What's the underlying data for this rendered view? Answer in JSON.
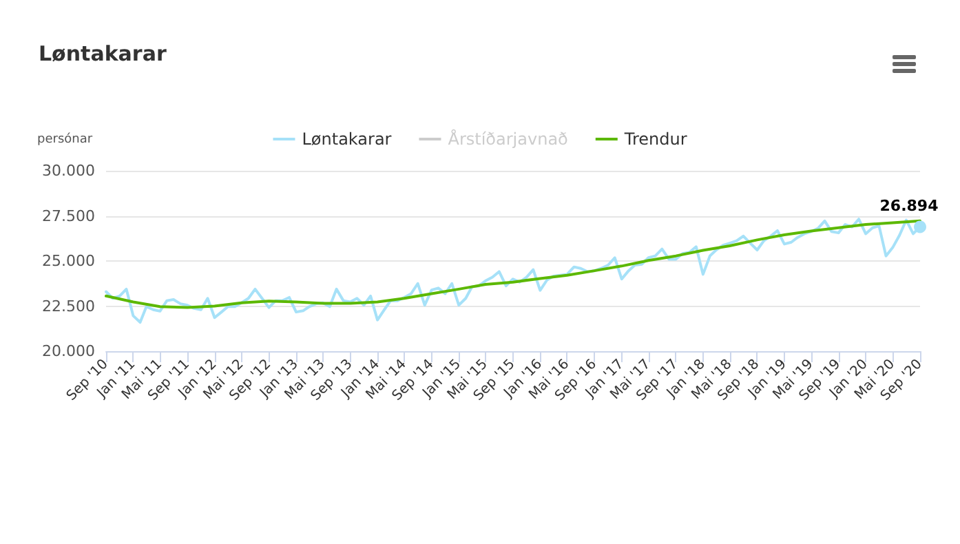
{
  "chart_data": {
    "type": "line",
    "title": "Løntakarar",
    "ylabel": "persónar",
    "x": [
      "2010-09",
      "2010-10",
      "2010-11",
      "2010-12",
      "2011-01",
      "2011-02",
      "2011-03",
      "2011-04",
      "2011-05",
      "2011-06",
      "2011-07",
      "2011-08",
      "2011-09",
      "2011-10",
      "2011-11",
      "2011-12",
      "2012-01",
      "2012-02",
      "2012-03",
      "2012-04",
      "2012-05",
      "2012-06",
      "2012-07",
      "2012-08",
      "2012-09",
      "2012-10",
      "2012-11",
      "2012-12",
      "2013-01",
      "2013-02",
      "2013-03",
      "2013-04",
      "2013-05",
      "2013-06",
      "2013-07",
      "2013-08",
      "2013-09",
      "2013-10",
      "2013-11",
      "2013-12",
      "2014-01",
      "2014-02",
      "2014-03",
      "2014-04",
      "2014-05",
      "2014-06",
      "2014-07",
      "2014-08",
      "2014-09",
      "2014-10",
      "2014-11",
      "2014-12",
      "2015-01",
      "2015-02",
      "2015-03",
      "2015-04",
      "2015-05",
      "2015-06",
      "2015-07",
      "2015-08",
      "2015-09",
      "2015-10",
      "2015-11",
      "2015-12",
      "2016-01",
      "2016-02",
      "2016-03",
      "2016-04",
      "2016-05",
      "2016-06",
      "2016-07",
      "2016-08",
      "2016-09",
      "2016-10",
      "2016-11",
      "2016-12",
      "2017-01",
      "2017-02",
      "2017-03",
      "2017-04",
      "2017-05",
      "2017-06",
      "2017-07",
      "2017-08",
      "2017-09",
      "2017-10",
      "2017-11",
      "2017-12",
      "2018-01",
      "2018-02",
      "2018-03",
      "2018-04",
      "2018-05",
      "2018-06",
      "2018-07",
      "2018-08",
      "2018-09",
      "2018-10",
      "2018-11",
      "2018-12",
      "2019-01",
      "2019-02",
      "2019-03",
      "2019-04",
      "2019-05",
      "2019-06",
      "2019-07",
      "2019-08",
      "2019-09",
      "2019-10",
      "2019-11",
      "2019-12",
      "2020-01",
      "2020-02",
      "2020-03",
      "2020-04",
      "2020-05",
      "2020-06",
      "2020-07",
      "2020-08",
      "2020-09"
    ],
    "series": [
      {
        "name": "Løntakarar",
        "color": "#a6e1f8",
        "values": [
          23300,
          22930,
          23060,
          23440,
          21960,
          21600,
          22470,
          22300,
          22220,
          22800,
          22860,
          22630,
          22550,
          22370,
          22300,
          22930,
          21860,
          22170,
          22470,
          22470,
          22680,
          22930,
          23440,
          22930,
          22420,
          22800,
          22800,
          22980,
          22170,
          22240,
          22470,
          22630,
          22680,
          22470,
          23440,
          22800,
          22730,
          22930,
          22550,
          23060,
          21730,
          22300,
          22800,
          22800,
          22980,
          23190,
          23750,
          22550,
          23390,
          23500,
          23190,
          23750,
          22550,
          22930,
          23570,
          23620,
          23900,
          24100,
          24410,
          23620,
          24000,
          23830,
          24100,
          24520,
          23370,
          23950,
          24160,
          24210,
          24260,
          24670,
          24590,
          24410,
          24460,
          24590,
          24770,
          25180,
          24000,
          24460,
          24770,
          24820,
          25180,
          25280,
          25660,
          25100,
          25100,
          25410,
          25480,
          25790,
          24260,
          25280,
          25610,
          25870,
          25990,
          26120,
          26380,
          25990,
          25610,
          26120,
          26380,
          26680,
          25940,
          26040,
          26300,
          26510,
          26630,
          26810,
          27220,
          26630,
          26560,
          27020,
          26890,
          27320,
          26510,
          26840,
          26940,
          25280,
          25740,
          26430,
          27270,
          26510,
          26894
        ],
        "value_labels": [
          null,
          null,
          null,
          null,
          null,
          null,
          null,
          null,
          null,
          null,
          null,
          null,
          null,
          null,
          null,
          null,
          null,
          null,
          null,
          null,
          null,
          null,
          null,
          null,
          null,
          null,
          null,
          null,
          null,
          null,
          null,
          null,
          null,
          null,
          null,
          null,
          null,
          null,
          null,
          null,
          null,
          null,
          null,
          null,
          null,
          null,
          null,
          null,
          null,
          null,
          null,
          null,
          null,
          null,
          null,
          null,
          null,
          null,
          null,
          null,
          null,
          null,
          null,
          null,
          null,
          null,
          null,
          null,
          null,
          null,
          null,
          null,
          null,
          null,
          null,
          null,
          null,
          null,
          null,
          null,
          null,
          null,
          null,
          null,
          null,
          null,
          null,
          null,
          null,
          null,
          null,
          null,
          null,
          null,
          null,
          null,
          null,
          null,
          null,
          null,
          null,
          null,
          null,
          null,
          null,
          null,
          null,
          null,
          null,
          null,
          null,
          null,
          null,
          null,
          null,
          null,
          null,
          null,
          null,
          null,
          "26.894"
        ]
      },
      {
        "name": "Årstíðarjavnað",
        "color": "#cccccc",
        "values": [
          null,
          null,
          null,
          null,
          null,
          null,
          null,
          null,
          null,
          null,
          null,
          null,
          null,
          null,
          null,
          null,
          null,
          null,
          null,
          null,
          null,
          null,
          null,
          null,
          null,
          null,
          null,
          null,
          null,
          null,
          null,
          null,
          null,
          null,
          null,
          null,
          null,
          null,
          null,
          null,
          null,
          null,
          null,
          null,
          null,
          null,
          null,
          null,
          null,
          null,
          null,
          null,
          null,
          null,
          null,
          null,
          null,
          null,
          null,
          null,
          null,
          null,
          null,
          null,
          null,
          null,
          null,
          null,
          null,
          null,
          null,
          null,
          null,
          null,
          null,
          null,
          null,
          null,
          null,
          null,
          null,
          null,
          null,
          null,
          null,
          null,
          null,
          null,
          null,
          null,
          null,
          null,
          null,
          null,
          null,
          null,
          null,
          null,
          null,
          null,
          null,
          null,
          null,
          null,
          null,
          null,
          null,
          null,
          null,
          null,
          null,
          null,
          null,
          null,
          null,
          null,
          null,
          null,
          null,
          null,
          null
        ]
      },
      {
        "name": "Trendur",
        "color": "#5cb800",
        "x": [
          "2010-09",
          "2011-01",
          "2011-05",
          "2011-09",
          "2012-01",
          "2012-05",
          "2012-09",
          "2013-01",
          "2013-05",
          "2013-09",
          "2014-01",
          "2014-05",
          "2014-09",
          "2015-01",
          "2015-05",
          "2015-09",
          "2016-01",
          "2016-05",
          "2016-09",
          "2017-01",
          "2017-05",
          "2017-09",
          "2018-01",
          "2018-05",
          "2018-09",
          "2019-01",
          "2019-05",
          "2019-09",
          "2020-01",
          "2020-05",
          "2020-09"
        ],
        "values": [
          23060,
          22730,
          22470,
          22420,
          22500,
          22680,
          22780,
          22730,
          22650,
          22650,
          22730,
          22930,
          23190,
          23440,
          23700,
          23830,
          24030,
          24210,
          24460,
          24720,
          25030,
          25280,
          25590,
          25840,
          26170,
          26450,
          26660,
          26840,
          27020,
          27120,
          27220
        ]
      }
    ],
    "xlim": [
      "2010-09",
      "2020-09"
    ],
    "xticks": [
      {
        "value": "2010-09",
        "label": "Sep '10"
      },
      {
        "value": "2011-01",
        "label": "Jan '11"
      },
      {
        "value": "2011-05",
        "label": "Mai '11"
      },
      {
        "value": "2011-09",
        "label": "Sep '11"
      },
      {
        "value": "2012-01",
        "label": "Jan '12"
      },
      {
        "value": "2012-05",
        "label": "Mai '12"
      },
      {
        "value": "2012-09",
        "label": "Sep '12"
      },
      {
        "value": "2013-01",
        "label": "Jan '13"
      },
      {
        "value": "2013-05",
        "label": "Mai '13"
      },
      {
        "value": "2013-09",
        "label": "Sep '13"
      },
      {
        "value": "2014-01",
        "label": "Jan '14"
      },
      {
        "value": "2014-05",
        "label": "Mai '14"
      },
      {
        "value": "2014-09",
        "label": "Sep '14"
      },
      {
        "value": "2015-01",
        "label": "Jan '15"
      },
      {
        "value": "2015-05",
        "label": "Mai '15"
      },
      {
        "value": "2015-09",
        "label": "Sep '15"
      },
      {
        "value": "2016-01",
        "label": "Jan '16"
      },
      {
        "value": "2016-05",
        "label": "Mai '16"
      },
      {
        "value": "2016-09",
        "label": "Sep '16"
      },
      {
        "value": "2017-01",
        "label": "Jan '17"
      },
      {
        "value": "2017-05",
        "label": "Mai '17"
      },
      {
        "value": "2017-09",
        "label": "Sep '17"
      },
      {
        "value": "2018-01",
        "label": "Jan '18"
      },
      {
        "value": "2018-05",
        "label": "Mai '18"
      },
      {
        "value": "2018-09",
        "label": "Sep '18"
      },
      {
        "value": "2019-01",
        "label": "Jan '19"
      },
      {
        "value": "2019-05",
        "label": "Mai '19"
      },
      {
        "value": "2019-09",
        "label": "Sep '19"
      },
      {
        "value": "2020-01",
        "label": "Jan '20"
      },
      {
        "value": "2020-05",
        "label": "Mai '20"
      },
      {
        "value": "2020-09",
        "label": "Sep '20"
      }
    ],
    "ylim": [
      20000,
      30000
    ],
    "yticks": [
      {
        "value": 20000,
        "label": "20.000"
      },
      {
        "value": 22500,
        "label": "22.500"
      },
      {
        "value": 25000,
        "label": "25.000"
      },
      {
        "value": 27500,
        "label": "27.500"
      },
      {
        "value": 30000,
        "label": "30.000"
      }
    ],
    "grid": "y",
    "legend": "top",
    "line_style": "solid"
  }
}
